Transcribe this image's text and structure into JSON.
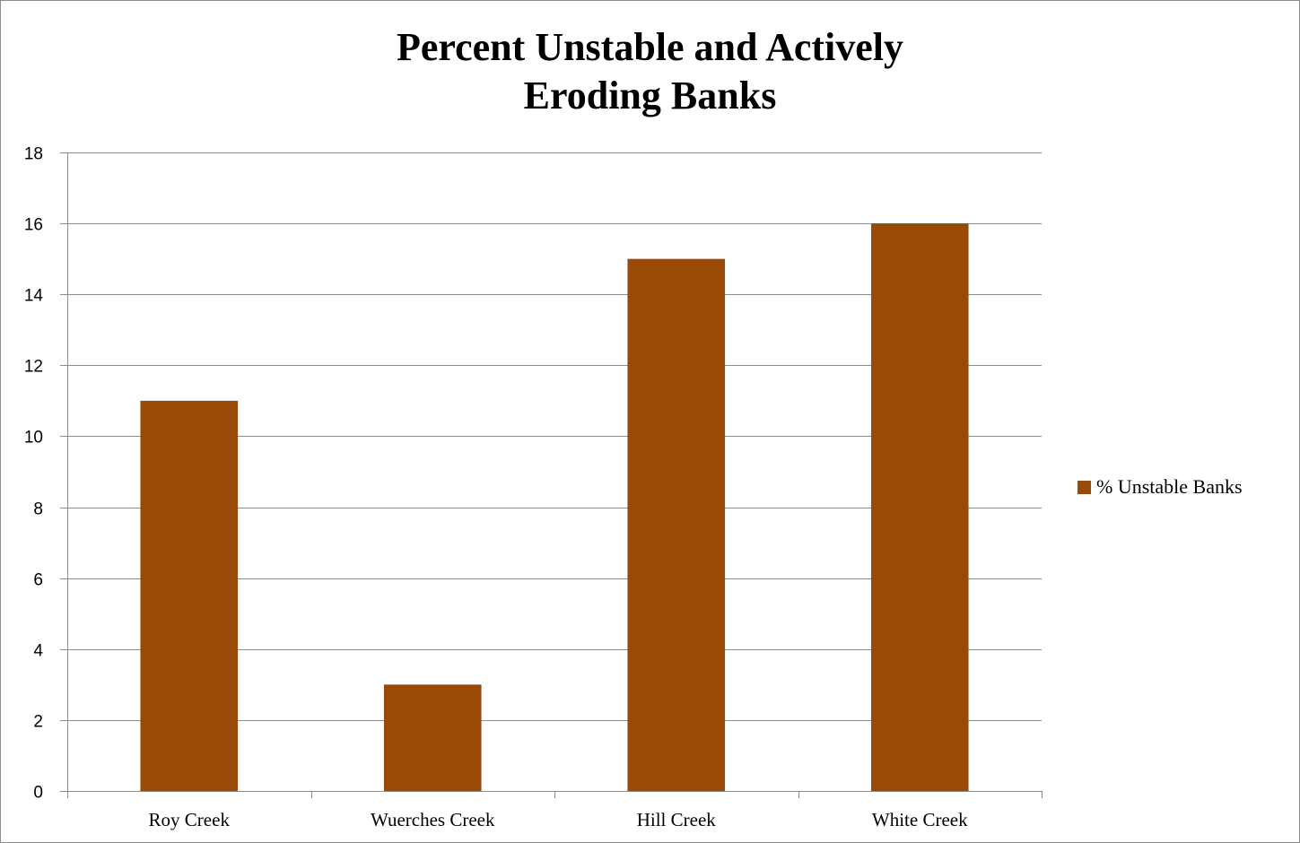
{
  "chart_data": {
    "type": "bar",
    "title_lines": [
      "Percent Unstable and Actively",
      "Eroding Banks"
    ],
    "categories": [
      "Roy Creek",
      "Wuerches Creek",
      "Hill Creek",
      "White Creek"
    ],
    "series": [
      {
        "name": "% Unstable Banks",
        "values": [
          11,
          3,
          15,
          16
        ],
        "color": "#994a07"
      }
    ],
    "ylim": [
      0,
      18
    ],
    "yticks": [
      0,
      2,
      4,
      6,
      8,
      10,
      12,
      14,
      16,
      18
    ],
    "grid": true,
    "legend_position": "right"
  }
}
